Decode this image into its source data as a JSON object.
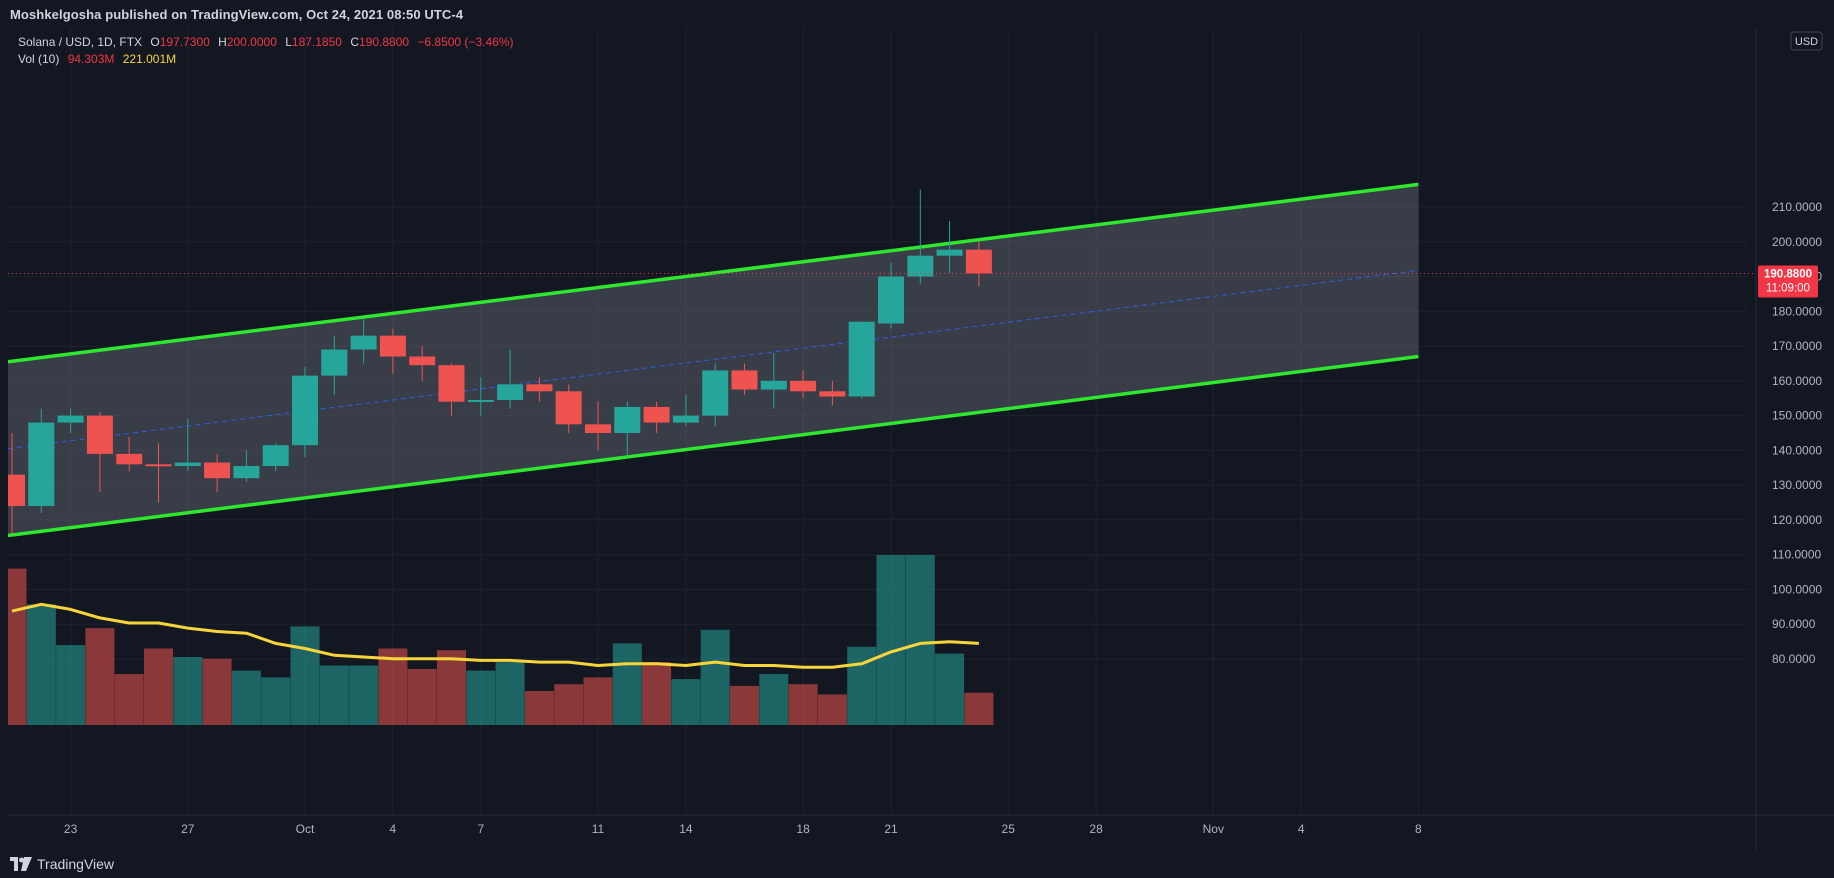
{
  "header": {
    "publisher": "Moshkelgosha published on TradingView.com, Oct 24, 2021 08:50 UTC-4"
  },
  "legend": {
    "symbol": "Solana / USD, 1D, FTX",
    "o_label": "O",
    "o_value": "197.7300",
    "h_label": "H",
    "h_value": "200.0000",
    "l_label": "L",
    "l_value": "187.1850",
    "c_label": "C",
    "c_value": "190.8800",
    "change": "−6.8500 (−3.46%)",
    "vol_label": "Vol (10)",
    "vol_value": "94.303M",
    "vol_ma_value": "221.001M"
  },
  "price_axis": {
    "currency": "USD",
    "last_price": "190.8800",
    "countdown": "11:09:00"
  },
  "footer": {
    "brand": "TradingView"
  },
  "colors": {
    "up": "#26a69a",
    "down": "#ef5350",
    "channel": "#2ee82e",
    "volume_ma": "#f7d53a",
    "mid_line": "#2962ff",
    "last_price": "#f23645"
  },
  "chart_data": {
    "type": "candlestick",
    "symbol": "Solana / USD",
    "interval": "1D",
    "exchange": "FTX",
    "ylim": [
      70,
      220
    ],
    "y_ticks": [
      80,
      90,
      100,
      110,
      120,
      130,
      140,
      150,
      160,
      170,
      180,
      190,
      200,
      210
    ],
    "y_tick_labels": [
      "80.0000",
      "90.0000",
      "100.0000",
      "110.0000",
      "120.0000",
      "130.0000",
      "140.0000",
      "150.0000",
      "160.0000",
      "170.0000",
      "180.0000",
      "190.0000",
      "200.0000",
      "210.0000"
    ],
    "x_ticks": [
      {
        "date": "2021-09-23",
        "label": "23"
      },
      {
        "date": "2021-09-27",
        "label": "27"
      },
      {
        "date": "2021-10-01",
        "label": "Oct"
      },
      {
        "date": "2021-10-04",
        "label": "4"
      },
      {
        "date": "2021-10-07",
        "label": "7"
      },
      {
        "date": "2021-10-11",
        "label": "11"
      },
      {
        "date": "2021-10-14",
        "label": "14"
      },
      {
        "date": "2021-10-18",
        "label": "18"
      },
      {
        "date": "2021-10-21",
        "label": "21"
      },
      {
        "date": "2021-10-25",
        "label": "25"
      },
      {
        "date": "2021-10-28",
        "label": "28"
      },
      {
        "date": "2021-11-01",
        "label": "Nov"
      },
      {
        "date": "2021-11-04",
        "label": "4"
      },
      {
        "date": "2021-11-08",
        "label": "8"
      }
    ],
    "x_start": "2021-09-21",
    "x_end": "2021-11-10",
    "candles": [
      {
        "date": "2021-09-21",
        "o": 133,
        "h": 145,
        "l": 116,
        "c": 124
      },
      {
        "date": "2021-09-22",
        "o": 124,
        "h": 152,
        "l": 122,
        "c": 148
      },
      {
        "date": "2021-09-23",
        "o": 148,
        "h": 152,
        "l": 145,
        "c": 150
      },
      {
        "date": "2021-09-24",
        "o": 150,
        "h": 151,
        "l": 128,
        "c": 139
      },
      {
        "date": "2021-09-25",
        "o": 139,
        "h": 144,
        "l": 134,
        "c": 136
      },
      {
        "date": "2021-09-26",
        "o": 136,
        "h": 142,
        "l": 125,
        "c": 135.5
      },
      {
        "date": "2021-09-27",
        "o": 135.5,
        "h": 149,
        "l": 134,
        "c": 136.5
      },
      {
        "date": "2021-09-28",
        "o": 136.5,
        "h": 139,
        "l": 128,
        "c": 132
      },
      {
        "date": "2021-09-29",
        "o": 132,
        "h": 140,
        "l": 131,
        "c": 135.5
      },
      {
        "date": "2021-09-30",
        "o": 135.5,
        "h": 142,
        "l": 134,
        "c": 141.5
      },
      {
        "date": "2021-10-01",
        "o": 141.5,
        "h": 164,
        "l": 138,
        "c": 161.5
      },
      {
        "date": "2021-10-02",
        "o": 161.5,
        "h": 173,
        "l": 156,
        "c": 169
      },
      {
        "date": "2021-10-03",
        "o": 169,
        "h": 178,
        "l": 165,
        "c": 173
      },
      {
        "date": "2021-10-04",
        "o": 173,
        "h": 175,
        "l": 162,
        "c": 167
      },
      {
        "date": "2021-10-05",
        "o": 167,
        "h": 170,
        "l": 160,
        "c": 164.5
      },
      {
        "date": "2021-10-06",
        "o": 164.5,
        "h": 165,
        "l": 150,
        "c": 154
      },
      {
        "date": "2021-10-07",
        "o": 154,
        "h": 161,
        "l": 150,
        "c": 154.5
      },
      {
        "date": "2021-10-08",
        "o": 154.5,
        "h": 169,
        "l": 152,
        "c": 159
      },
      {
        "date": "2021-10-09",
        "o": 159,
        "h": 161,
        "l": 154,
        "c": 157
      },
      {
        "date": "2021-10-10",
        "o": 157,
        "h": 159,
        "l": 145,
        "c": 147.5
      },
      {
        "date": "2021-10-11",
        "o": 147.5,
        "h": 154,
        "l": 140,
        "c": 145
      },
      {
        "date": "2021-10-12",
        "o": 145,
        "h": 154,
        "l": 138,
        "c": 152.5
      },
      {
        "date": "2021-10-13",
        "o": 152.5,
        "h": 154,
        "l": 145,
        "c": 148
      },
      {
        "date": "2021-10-14",
        "o": 148,
        "h": 156,
        "l": 147,
        "c": 150
      },
      {
        "date": "2021-10-15",
        "o": 150,
        "h": 165,
        "l": 147,
        "c": 163
      },
      {
        "date": "2021-10-16",
        "o": 163,
        "h": 165,
        "l": 156,
        "c": 157.5
      },
      {
        "date": "2021-10-17",
        "o": 157.5,
        "h": 168,
        "l": 152,
        "c": 160
      },
      {
        "date": "2021-10-18",
        "o": 160,
        "h": 163,
        "l": 155,
        "c": 157
      },
      {
        "date": "2021-10-19",
        "o": 157,
        "h": 160,
        "l": 153,
        "c": 155.5
      },
      {
        "date": "2021-10-20",
        "o": 155.5,
        "h": 177,
        "l": 155,
        "c": 177
      },
      {
        "date": "2021-10-21",
        "o": 176.5,
        "h": 194,
        "l": 175,
        "c": 190
      },
      {
        "date": "2021-10-22",
        "o": 190,
        "h": 215,
        "l": 188,
        "c": 196
      },
      {
        "date": "2021-10-23",
        "o": 196,
        "h": 206,
        "l": 191,
        "c": 197.73
      },
      {
        "date": "2021-10-24",
        "o": 197.73,
        "h": 200,
        "l": 187.185,
        "c": 190.88
      }
    ],
    "volume_bars": [
      {
        "date": "2021-09-21",
        "value": 0.92,
        "dir": "down"
      },
      {
        "date": "2021-09-22",
        "value": 0.71,
        "dir": "up"
      },
      {
        "date": "2021-09-23",
        "value": 0.47,
        "dir": "up"
      },
      {
        "date": "2021-09-24",
        "value": 0.57,
        "dir": "down"
      },
      {
        "date": "2021-09-25",
        "value": 0.3,
        "dir": "down"
      },
      {
        "date": "2021-09-26",
        "value": 0.45,
        "dir": "down"
      },
      {
        "date": "2021-09-27",
        "value": 0.4,
        "dir": "up"
      },
      {
        "date": "2021-09-28",
        "value": 0.39,
        "dir": "down"
      },
      {
        "date": "2021-09-29",
        "value": 0.32,
        "dir": "up"
      },
      {
        "date": "2021-09-30",
        "value": 0.28,
        "dir": "up"
      },
      {
        "date": "2021-10-01",
        "value": 0.58,
        "dir": "up"
      },
      {
        "date": "2021-10-02",
        "value": 0.35,
        "dir": "up"
      },
      {
        "date": "2021-10-03",
        "value": 0.35,
        "dir": "up"
      },
      {
        "date": "2021-10-04",
        "value": 0.45,
        "dir": "down"
      },
      {
        "date": "2021-10-05",
        "value": 0.33,
        "dir": "down"
      },
      {
        "date": "2021-10-06",
        "value": 0.44,
        "dir": "down"
      },
      {
        "date": "2021-10-07",
        "value": 0.32,
        "dir": "up"
      },
      {
        "date": "2021-10-08",
        "value": 0.37,
        "dir": "up"
      },
      {
        "date": "2021-10-09",
        "value": 0.2,
        "dir": "down"
      },
      {
        "date": "2021-10-10",
        "value": 0.24,
        "dir": "down"
      },
      {
        "date": "2021-10-11",
        "value": 0.28,
        "dir": "down"
      },
      {
        "date": "2021-10-12",
        "value": 0.48,
        "dir": "up"
      },
      {
        "date": "2021-10-13",
        "value": 0.37,
        "dir": "down"
      },
      {
        "date": "2021-10-14",
        "value": 0.27,
        "dir": "up"
      },
      {
        "date": "2021-10-15",
        "value": 0.56,
        "dir": "up"
      },
      {
        "date": "2021-10-16",
        "value": 0.23,
        "dir": "down"
      },
      {
        "date": "2021-10-17",
        "value": 0.3,
        "dir": "up"
      },
      {
        "date": "2021-10-18",
        "value": 0.24,
        "dir": "down"
      },
      {
        "date": "2021-10-19",
        "value": 0.18,
        "dir": "down"
      },
      {
        "date": "2021-10-20",
        "value": 0.46,
        "dir": "up"
      },
      {
        "date": "2021-10-21",
        "value": 1.0,
        "dir": "up"
      },
      {
        "date": "2021-10-22",
        "value": 1.0,
        "dir": "up"
      },
      {
        "date": "2021-10-23",
        "value": 0.42,
        "dir": "up"
      },
      {
        "date": "2021-10-24",
        "value": 0.19,
        "dir": "down"
      }
    ],
    "volume_ma_line": [
      0.67,
      0.71,
      0.68,
      0.63,
      0.6,
      0.6,
      0.57,
      0.55,
      0.54,
      0.48,
      0.45,
      0.41,
      0.4,
      0.39,
      0.39,
      0.39,
      0.38,
      0.38,
      0.37,
      0.37,
      0.35,
      0.36,
      0.36,
      0.35,
      0.37,
      0.35,
      0.35,
      0.34,
      0.34,
      0.36,
      0.43,
      0.48,
      0.49,
      0.48
    ],
    "channel": {
      "upper": {
        "start": [
          "2021-09-21",
          165.5
        ],
        "end": [
          "2021-11-08",
          216.5
        ]
      },
      "lower": {
        "start": [
          "2021-09-21",
          115.5
        ],
        "end": [
          "2021-11-08",
          167.0
        ]
      },
      "mid": {
        "start": [
          "2021-09-21",
          140.5
        ],
        "end": [
          "2021-11-08",
          191.75
        ]
      }
    },
    "last_price": 190.88
  }
}
